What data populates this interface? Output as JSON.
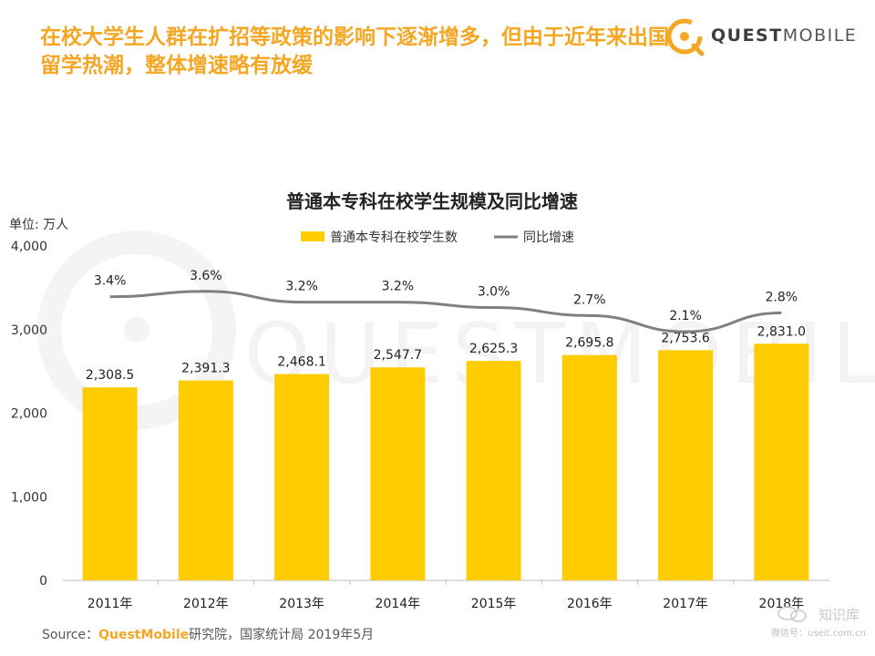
{
  "headline": "在校大学生人群在扩招等政策的影响下逐渐增多，但由于近年来出国留学热潮，整体增速略有放缓",
  "brand": {
    "text_bold": "QUEST",
    "text_light": "MOBILE",
    "icon": "quest-mobile-logo-icon",
    "color": "#f5a623"
  },
  "source": {
    "prefix": "Source：",
    "brand": "QuestMobile",
    "suffix": "研究院，国家统计局 2019年5月"
  },
  "watermark": {
    "title": "知识库",
    "subtitle": "微信号：useit.com.cn"
  },
  "background_watermark": "QUESTMOBILE",
  "colors": {
    "bar": "#ffcc00",
    "line": "#808080",
    "accent": "#f5a623"
  },
  "chart_data": {
    "type": "bar",
    "title": "普通本专科在校学生规模及同比增速",
    "ylabel": "单位: 万人",
    "xlabel": "",
    "ylim": [
      0,
      4000
    ],
    "yticks": [
      0,
      1000,
      2000,
      3000,
      4000
    ],
    "ytick_labels": [
      "0",
      "1,000",
      "2,000",
      "3,000",
      "4,000"
    ],
    "categories": [
      "2011年",
      "2012年",
      "2013年",
      "2014年",
      "2015年",
      "2016年",
      "2017年",
      "2018年"
    ],
    "series": [
      {
        "name": "普通本专科在校学生数",
        "type": "bar",
        "values": [
          2308.5,
          2391.3,
          2468.1,
          2547.7,
          2625.3,
          2695.8,
          2753.6,
          2831.0
        ],
        "labels": [
          "2,308.5",
          "2,391.3",
          "2,468.1",
          "2,547.7",
          "2,625.3",
          "2,695.8",
          "2,753.6",
          "2,831.0"
        ]
      },
      {
        "name": "同比增速",
        "type": "line",
        "values": [
          3.4,
          3.6,
          3.2,
          3.2,
          3.0,
          2.7,
          2.1,
          2.8
        ],
        "labels": [
          "3.4%",
          "3.6%",
          "3.2%",
          "3.2%",
          "3.0%",
          "2.7%",
          "2.1%",
          "2.8%"
        ]
      }
    ],
    "legend_position": "top-center",
    "grid": false
  }
}
